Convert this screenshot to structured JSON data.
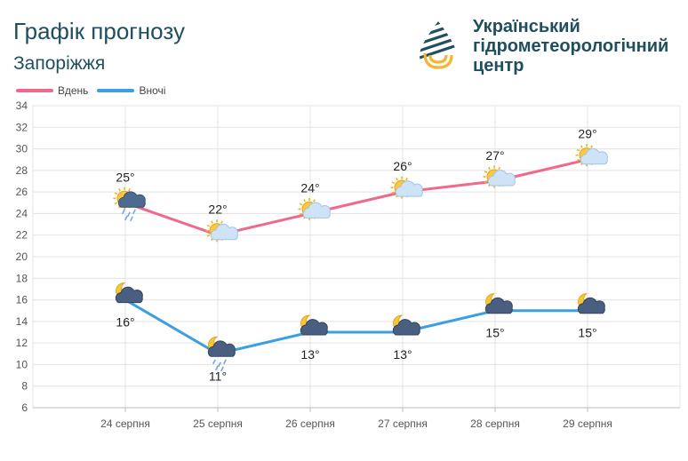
{
  "header": {
    "title": "Графік прогнозу",
    "city": "Запоріжжя"
  },
  "org": {
    "lines": [
      "Український",
      "гідрометеорологічний",
      "центр"
    ],
    "logo_icon": "water-drop-logo-icon"
  },
  "colors": {
    "day": "#f0698a",
    "night": "#3b9fe0",
    "brand": "#1f4e5f",
    "logo_gold": "#f2b632"
  },
  "chart_data": {
    "type": "line",
    "categories": [
      "24 серпня",
      "25 серпня",
      "26 серпня",
      "27 серпня",
      "28 серпня",
      "29 серпня"
    ],
    "series": [
      {
        "name": "Вдень",
        "values": [
          25,
          22,
          24,
          26,
          27,
          29
        ],
        "labels": [
          "25°",
          "22°",
          "24°",
          "26°",
          "27°",
          "29°"
        ],
        "icons": [
          "sun-cloud-rain-icon",
          "sun-cloud-icon",
          "sun-cloud-icon",
          "sun-cloud-icon",
          "sun-cloud-icon",
          "sun-cloud-icon"
        ]
      },
      {
        "name": "Вночі",
        "values": [
          16,
          11,
          13,
          13,
          15,
          15
        ],
        "labels": [
          "16°",
          "11°",
          "13°",
          "13°",
          "15°",
          "15°"
        ],
        "icons": [
          "moon-cloud-icon",
          "moon-cloud-rain-icon",
          "moon-cloud-icon",
          "moon-cloud-icon",
          "moon-cloud-icon",
          "moon-cloud-icon"
        ]
      }
    ],
    "ylim": [
      6,
      34
    ],
    "yticks": [
      "6",
      "8",
      "10",
      "12",
      "14",
      "16",
      "18",
      "20",
      "22",
      "24",
      "26",
      "28",
      "30",
      "32",
      "34"
    ],
    "grid": true,
    "legend": "top-left"
  }
}
